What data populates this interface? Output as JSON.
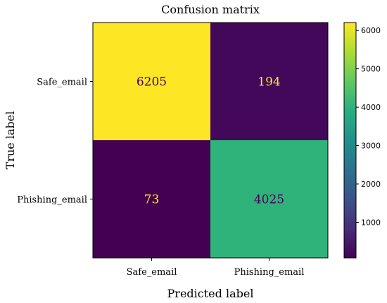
{
  "chart_data": {
    "type": "heatmap",
    "title": "Confusion matrix",
    "xlabel": "Predicted label",
    "ylabel": "True label",
    "x_categories": [
      "Safe_email",
      "Phishing_email"
    ],
    "y_categories": [
      "Safe_email",
      "Phishing_email"
    ],
    "values": [
      [
        6205,
        194
      ],
      [
        73,
        4025
      ]
    ],
    "colormap": "viridis",
    "colorbar": {
      "range": [
        73,
        6205
      ],
      "ticks": [
        1000,
        2000,
        3000,
        4000,
        5000,
        6000
      ],
      "tick_labels": [
        "1000",
        "2000",
        "3000",
        "4000",
        "5000",
        "6000"
      ]
    }
  }
}
